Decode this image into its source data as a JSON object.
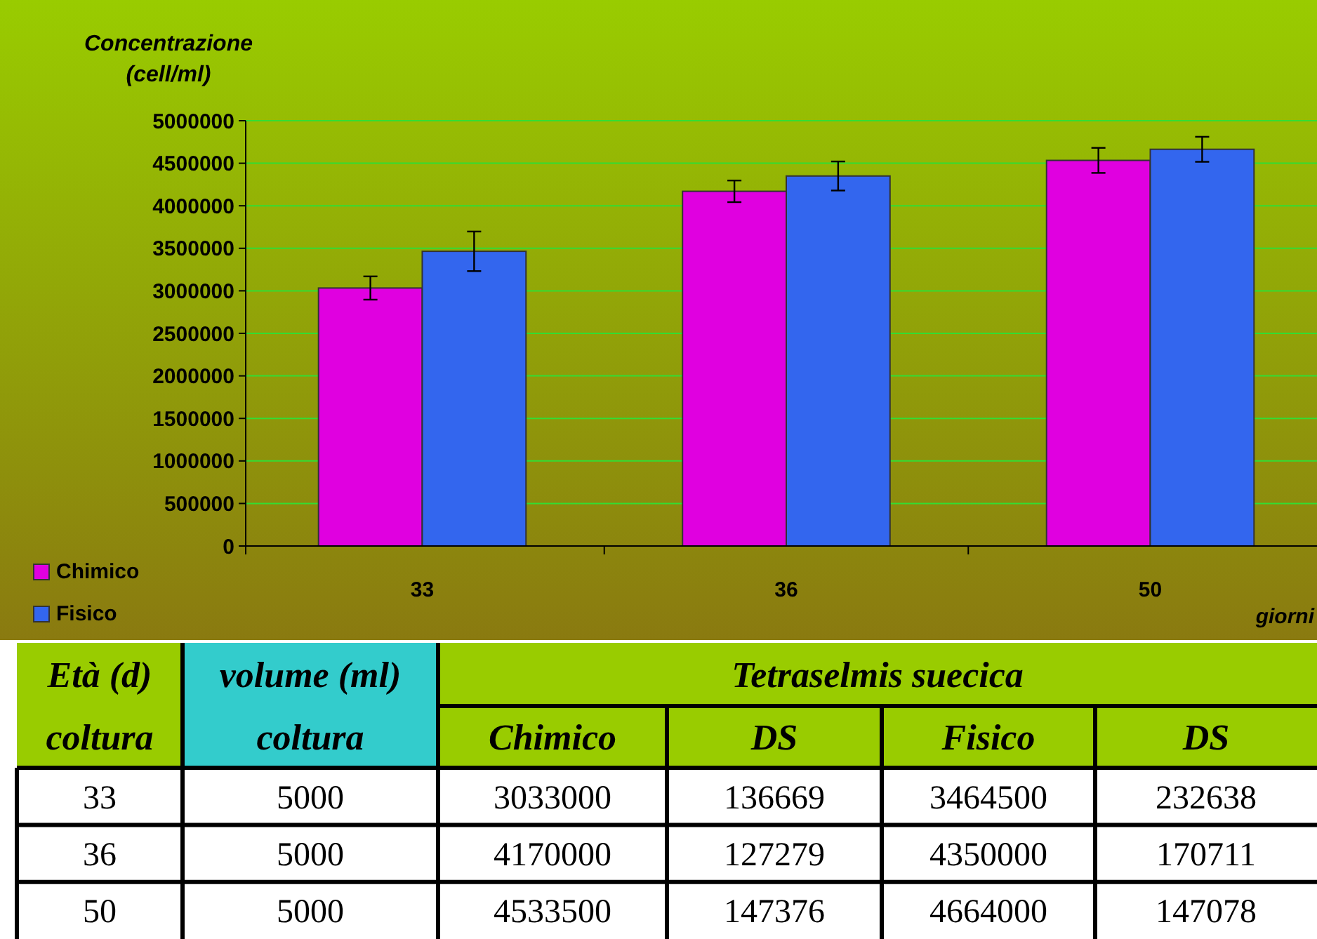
{
  "chart_data": [
    {
      "type": "bar",
      "ylabel": "Concentrazione\n(cell/ml)",
      "xlabel": "giorni",
      "categories": [
        "33",
        "36",
        "50"
      ],
      "series": [
        {
          "name": "Chimico",
          "color": "#e000e0",
          "values": [
            3033000,
            4170000,
            4533500
          ],
          "errors": [
            136669,
            127279,
            147376
          ]
        },
        {
          "name": "Fisico",
          "color": "#3366ee",
          "values": [
            3464500,
            4350000,
            4664000
          ],
          "errors": [
            232638,
            170711,
            147078
          ]
        }
      ],
      "ylim": [
        0,
        5000000
      ],
      "yticks": [
        0,
        500000,
        1000000,
        1500000,
        2000000,
        2500000,
        3000000,
        3500000,
        4000000,
        4500000,
        5000000
      ],
      "grid": "y",
      "legend": "bottom left"
    },
    {
      "type": "other",
      "title": "Tetraselmis suecica",
      "ylabel": "Età (d)\ncoltura",
      "categories": [
        "volume (ml)\ncoltura",
        "Chimico",
        "DS",
        "Fisico",
        "DS"
      ],
      "y_categories": [
        "33",
        "36",
        "50"
      ],
      "cell_labels": [
        [
          "5000",
          "3033000",
          "136669",
          "3464500",
          "232638"
        ],
        [
          "5000",
          "4170000",
          "127279",
          "4350000",
          "170711"
        ],
        [
          "5000",
          "4533500",
          "147376",
          "4664000",
          "147078"
        ]
      ]
    }
  ]
}
